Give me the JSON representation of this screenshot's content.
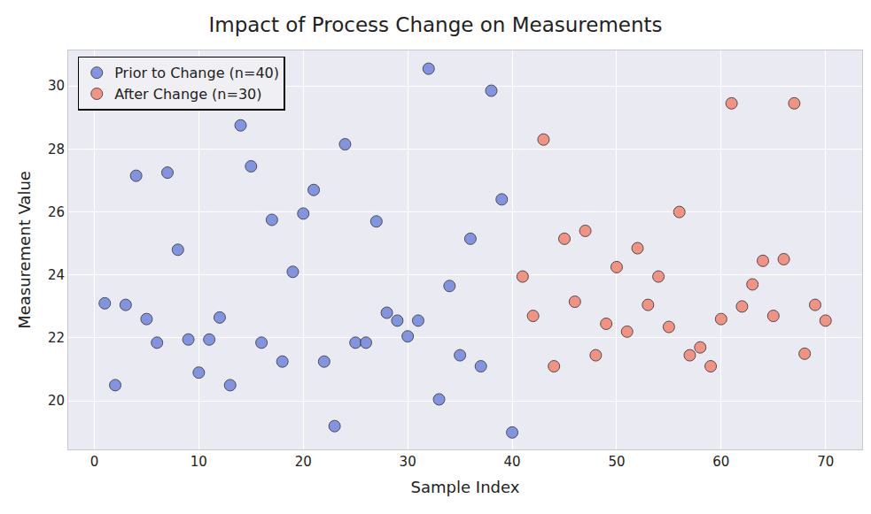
{
  "chart_data": {
    "type": "scatter",
    "title": "Impact of Process Change on Measurements",
    "x_label": "Sample Index",
    "y_label": "Measurement Value",
    "xlim": [
      -2.5,
      73.5
    ],
    "ylim": [
      18.46,
      31.13
    ],
    "xticks": [
      0,
      10,
      20,
      30,
      40,
      50,
      60,
      70
    ],
    "yticks": [
      20,
      22,
      24,
      26,
      28,
      30
    ],
    "grid": true,
    "legend": "upper left",
    "marker": "circle",
    "series": [
      {
        "name": "Prior to Change (n=40)",
        "color": "#6f86e0",
        "x": [
          1,
          2,
          3,
          4,
          5,
          6,
          7,
          8,
          9,
          10,
          11,
          12,
          13,
          14,
          15,
          16,
          17,
          18,
          19,
          20,
          21,
          22,
          23,
          24,
          25,
          26,
          27,
          28,
          29,
          30,
          31,
          32,
          33,
          34,
          35,
          36,
          37,
          38,
          39,
          40
        ],
        "values": [
          23.1,
          20.5,
          23.05,
          27.15,
          22.6,
          21.85,
          27.25,
          24.8,
          21.95,
          20.9,
          21.95,
          22.65,
          20.5,
          28.75,
          27.45,
          21.85,
          25.75,
          21.25,
          24.1,
          25.95,
          26.7,
          21.25,
          19.2,
          28.15,
          21.85,
          21.85,
          25.7,
          22.8,
          22.55,
          22.05,
          22.55,
          30.55,
          20.05,
          23.65,
          21.45,
          25.15,
          21.1,
          29.85,
          26.4,
          19.0
        ]
      },
      {
        "name": "After Change (n=30)",
        "color": "#f4836f",
        "x": [
          41,
          42,
          43,
          44,
          45,
          46,
          47,
          48,
          49,
          50,
          51,
          52,
          53,
          54,
          55,
          56,
          57,
          58,
          59,
          60,
          61,
          62,
          63,
          64,
          65,
          66,
          67,
          68,
          69,
          70
        ],
        "values": [
          23.95,
          22.7,
          28.3,
          21.1,
          25.15,
          23.15,
          25.4,
          21.45,
          22.45,
          24.25,
          22.2,
          24.85,
          23.05,
          23.95,
          22.35,
          26.0,
          21.45,
          21.7,
          21.1,
          22.6,
          29.45,
          23.0,
          23.7,
          24.45,
          22.7,
          24.5,
          29.45,
          21.5,
          23.05,
          22.55
        ]
      }
    ]
  }
}
